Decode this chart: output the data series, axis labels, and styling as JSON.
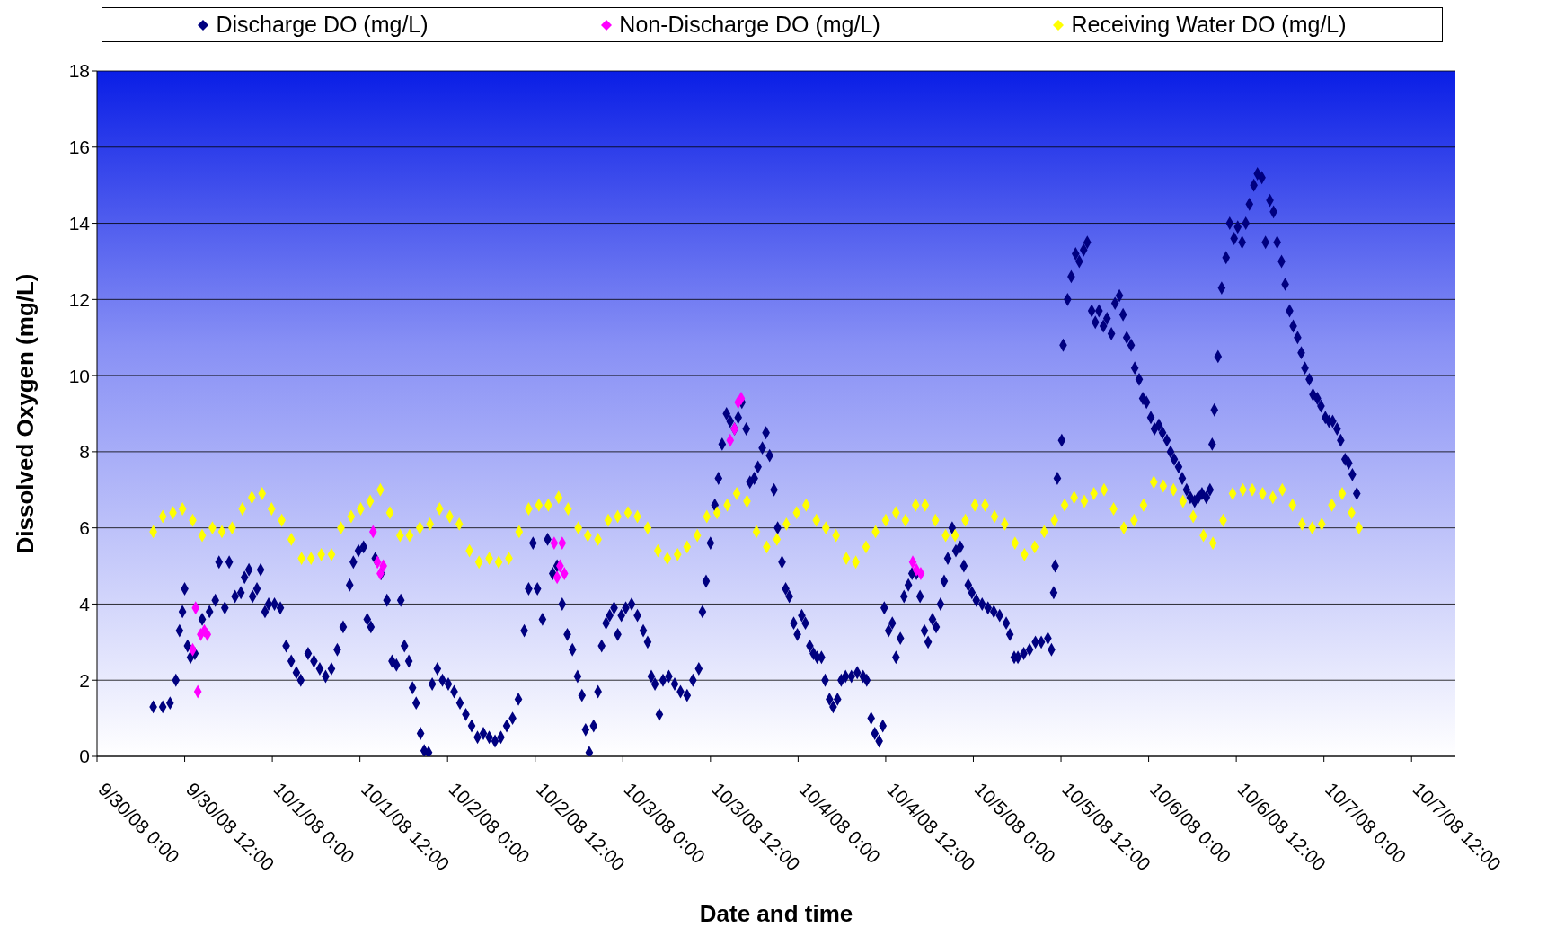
{
  "chart_data": {
    "type": "scatter",
    "xlabel": "Date and time",
    "ylabel": "Dissolved Oxygen (mg/L)",
    "legend": "top",
    "grid": "y",
    "marker": "diamond",
    "xlim": [
      "--09-30T00:00",
      "--10-07T18:00"
    ],
    "ylim": [
      0,
      18
    ],
    "yticks": [
      0,
      2,
      4,
      6,
      8,
      10,
      12,
      14,
      16,
      18
    ],
    "xticks": [
      {
        "value": "--09-30T00:00",
        "label": "9/30/08 0:00"
      },
      {
        "value": "--09-30T12:00",
        "label": "9/30/08 12:00"
      },
      {
        "value": "--10-01T00:00",
        "label": "10/1/08 0:00"
      },
      {
        "value": "--10-01T12:00",
        "label": "10/1/08 12:00"
      },
      {
        "value": "--10-02T00:00",
        "label": "10/2/08 0:00"
      },
      {
        "value": "--10-02T12:00",
        "label": "10/2/08 12:00"
      },
      {
        "value": "--10-03T00:00",
        "label": "10/3/08 0:00"
      },
      {
        "value": "--10-03T12:00",
        "label": "10/3/08 12:00"
      },
      {
        "value": "--10-04T00:00",
        "label": "10/4/08 0:00"
      },
      {
        "value": "--10-04T12:00",
        "label": "10/4/08 12:00"
      },
      {
        "value": "--10-05T00:00",
        "label": "10/5/08 0:00"
      },
      {
        "value": "--10-05T12:00",
        "label": "10/5/08 12:00"
      },
      {
        "value": "--10-06T00:00",
        "label": "10/6/08 0:00"
      },
      {
        "value": "--10-06T12:00",
        "label": "10/6/08 12:00"
      },
      {
        "value": "--10-07T00:00",
        "label": "10/7/08 0:00"
      },
      {
        "value": "--10-07T12:00",
        "label": "10/7/08 12:00"
      }
    ],
    "series": [
      {
        "name": "Discharge DO (mg/L)",
        "color": "#000080",
        "x": [
          "--09-30T07:42",
          "--09-30T09:00",
          "--09-30T10:00",
          "--09-30T10:48",
          "--09-30T11:18",
          "--09-30T11:42",
          "--09-30T12:00",
          "--09-30T12:24",
          "--09-30T12:48",
          "--09-30T13:24",
          "--09-30T14:24",
          "--09-30T15:24",
          "--09-30T16:12",
          "--09-30T16:42",
          "--09-30T17:30",
          "--09-30T18:06",
          "--09-30T18:54",
          "--09-30T19:42",
          "--09-30T20:12",
          "--09-30T20:48",
          "--09-30T21:18",
          "--09-30T21:54",
          "--09-30T22:24",
          "--09-30T23:00",
          "--09-30T23:30",
          "--10-01T00:18",
          "--10-01T01:06",
          "--10-01T01:54",
          "--10-01T02:36",
          "--10-01T03:18",
          "--10-01T03:54",
          "--10-01T04:54",
          "--10-01T05:42",
          "--10-01T06:30",
          "--10-01T07:18",
          "--10-01T08:06",
          "--10-01T08:54",
          "--10-01T09:42",
          "--10-01T10:36",
          "--10-01T11:06",
          "--10-01T11:48",
          "--10-01T12:30",
          "--10-01T13:00",
          "--10-01T13:30",
          "--10-01T14:06",
          "--10-01T14:54",
          "--10-01T15:42",
          "--10-01T16:24",
          "--10-01T17:00",
          "--10-01T17:36",
          "--10-01T18:06",
          "--10-01T18:42",
          "--10-01T19:12",
          "--10-01T19:42",
          "--10-01T20:18",
          "--10-01T20:48",
          "--10-01T21:24",
          "--10-01T21:54",
          "--10-01T22:36",
          "--10-01T23:18",
          "--10-02T00:06",
          "--10-02T00:54",
          "--10-02T01:42",
          "--10-02T02:30",
          "--10-02T03:18",
          "--10-02T04:06",
          "--10-02T04:54",
          "--10-02T05:42",
          "--10-02T06:30",
          "--10-02T07:18",
          "--10-02T08:06",
          "--10-02T08:54",
          "--10-02T09:42",
          "--10-02T10:30",
          "--10-02T11:06",
          "--10-02T11:42",
          "--10-02T12:18",
          "--10-02T13:00",
          "--10-02T13:42",
          "--10-02T14:24",
          "--10-02T15:00",
          "--10-02T15:42",
          "--10-02T16:24",
          "--10-02T17:06",
          "--10-02T17:48",
          "--10-02T18:24",
          "--10-02T18:54",
          "--10-02T19:24",
          "--10-02T20:00",
          "--10-02T20:36",
          "--10-02T21:06",
          "--10-02T21:42",
          "--10-02T22:12",
          "--10-02T22:48",
          "--10-02T23:18",
          "--10-02T23:48",
          "--10-03T00:24",
          "--10-03T01:12",
          "--10-03T02:00",
          "--10-03T02:48",
          "--10-03T03:24",
          "--10-03T03:54",
          "--10-03T04:24",
          "--10-03T05:00",
          "--10-03T05:30",
          "--10-03T06:18",
          "--10-03T07:06",
          "--10-03T07:54",
          "--10-03T08:48",
          "--10-03T09:36",
          "--10-03T10:24",
          "--10-03T10:54",
          "--10-03T11:24",
          "--10-03T12:00",
          "--10-03T12:36",
          "--10-03T13:06",
          "--10-03T13:36",
          "--10-03T14:12",
          "--10-03T14:42",
          "--10-03T15:18",
          "--10-03T15:48",
          "--10-03T16:18",
          "--10-03T16:54",
          "--10-03T17:24",
          "--10-03T18:00",
          "--10-03T18:30",
          "--10-03T19:06",
          "--10-03T19:36",
          "--10-03T20:06",
          "--10-03T20:42",
          "--10-03T21:12",
          "--10-03T21:48",
          "--10-03T22:18",
          "--10-03T22:48",
          "--10-03T23:24",
          "--10-03T23:54",
          "--10-04T00:30",
          "--10-04T01:00",
          "--10-04T01:36",
          "--10-04T02:06",
          "--10-04T02:36",
          "--10-04T03:12",
          "--10-04T03:42",
          "--10-04T04:18",
          "--10-04T04:48",
          "--10-04T05:24",
          "--10-04T05:54",
          "--10-04T06:30",
          "--10-04T07:18",
          "--10-04T08:06",
          "--10-04T08:54",
          "--10-04T09:24",
          "--10-04T10:00",
          "--10-04T10:30",
          "--10-04T11:06",
          "--10-04T11:36",
          "--10-04T11:48",
          "--10-04T12:24",
          "--10-04T12:54",
          "--10-04T13:24",
          "--10-04T14:00",
          "--10-04T14:30",
          "--10-04T15:06",
          "--10-04T15:36",
          "--10-04T16:12",
          "--10-04T16:42",
          "--10-04T17:18",
          "--10-04T17:48",
          "--10-04T18:24",
          "--10-04T18:54",
          "--10-04T19:30",
          "--10-04T20:00",
          "--10-04T20:30",
          "--10-04T21:06",
          "--10-04T21:36",
          "--10-04T22:12",
          "--10-04T22:42",
          "--10-04T23:18",
          "--10-04T23:48",
          "--10-05T00:24",
          "--10-05T01:12",
          "--10-05T02:00",
          "--10-05T02:48",
          "--10-05T03:36",
          "--10-05T04:30",
          "--10-05T05:00",
          "--10-05T05:36",
          "--10-05T06:06",
          "--10-05T06:54",
          "--10-05T07:42",
          "--10-05T08:30",
          "--10-05T09:18",
          "--10-05T10:12",
          "--10-05T10:42",
          "--10-05T11:00",
          "--10-05T11:12",
          "--10-05T11:30",
          "--10-05T12:06",
          "--10-05T12:18",
          "--10-05T12:54",
          "--10-05T13:24",
          "--10-05T14:00",
          "--10-05T14:30",
          "--10-05T15:06",
          "--10-05T15:36",
          "--10-05T16:12",
          "--10-05T16:42",
          "--10-05T17:12",
          "--10-05T17:48",
          "--10-05T18:18",
          "--10-05T18:54",
          "--10-05T19:24",
          "--10-05T20:00",
          "--10-05T20:30",
          "--10-05T21:00",
          "--10-05T21:36",
          "--10-05T22:06",
          "--10-05T22:42",
          "--10-05T23:12",
          "--10-05T23:42",
          "--10-06T00:18",
          "--10-06T00:48",
          "--10-06T01:24",
          "--10-06T01:54",
          "--10-06T02:30",
          "--10-06T03:00",
          "--10-06T03:30",
          "--10-06T04:06",
          "--10-06T04:36",
          "--10-06T05:12",
          "--10-06T05:42",
          "--10-06T06:18",
          "--10-06T06:48",
          "--10-06T07:18",
          "--10-06T07:54",
          "--10-06T08:24",
          "--10-06T08:42",
          "--10-06T09:00",
          "--10-06T09:30",
          "--10-06T10:00",
          "--10-06T10:36",
          "--10-06T11:06",
          "--10-06T11:42",
          "--10-06T12:12",
          "--10-06T12:48",
          "--10-06T13:18",
          "--10-06T13:48",
          "--10-06T14:24",
          "--10-06T14:54",
          "--10-06T15:30",
          "--10-06T16:00",
          "--10-06T16:36",
          "--10-06T17:06",
          "--10-06T17:36",
          "--10-06T18:12",
          "--10-06T18:42",
          "--10-06T19:18",
          "--10-06T19:48",
          "--10-06T20:24",
          "--10-06T20:54",
          "--10-06T21:24",
          "--10-06T22:00",
          "--10-06T22:30",
          "--10-06T23:06",
          "--10-06T23:36",
          "--10-07T00:12",
          "--10-07T00:42",
          "--10-07T01:12",
          "--10-07T01:48",
          "--10-07T02:18",
          "--10-07T02:54",
          "--10-07T03:24",
          "--10-07T03:54",
          "--10-07T04:30"
        ],
        "values": [
          1.3,
          1.3,
          1.4,
          2,
          3.3,
          3.8,
          4.4,
          2.9,
          2.6,
          2.7,
          3.6,
          3.8,
          4.1,
          5.1,
          3.9,
          5.1,
          4.2,
          4.3,
          4.7,
          4.9,
          4.2,
          4.4,
          4.9,
          3.8,
          4,
          4,
          3.9,
          2.9,
          2.5,
          2.2,
          2,
          2.7,
          2.5,
          2.3,
          2.1,
          2.3,
          2.8,
          3.4,
          4.5,
          5.1,
          5.4,
          5.5,
          3.6,
          3.4,
          5.2,
          4.8,
          4.1,
          2.5,
          2.4,
          4.1,
          2.9,
          2.5,
          1.8,
          1.4,
          0.6,
          0.15,
          0.1,
          1.9,
          2.3,
          2,
          1.9,
          1.7,
          1.4,
          1.1,
          0.8,
          0.5,
          0.6,
          0.5,
          0.4,
          0.5,
          0.8,
          1,
          1.5,
          3.3,
          4.4,
          5.6,
          4.4,
          3.6,
          5.7,
          4.8,
          5,
          4,
          3.2,
          2.8,
          2.1,
          1.6,
          0.7,
          0.1,
          0.8,
          1.7,
          2.9,
          3.5,
          3.7,
          3.9,
          3.2,
          3.7,
          3.9,
          4,
          3.7,
          3.3,
          3,
          2.1,
          1.9,
          1.1,
          2,
          2.1,
          1.9,
          1.7,
          1.6,
          2,
          2.3,
          3.8,
          4.6,
          5.6,
          6.6,
          7.3,
          8.2,
          9,
          8.8,
          8.6,
          8.9,
          9.3,
          8.6,
          7.2,
          7.3,
          7.6,
          8.1,
          8.5,
          7.9,
          7,
          6,
          5.1,
          4.4,
          4.2,
          3.5,
          3.2,
          3.7,
          3.5,
          2.9,
          2.7,
          2.6,
          2.6,
          2,
          1.5,
          1.3,
          1.5,
          2,
          2.1,
          2.1,
          2.2,
          2.1,
          2,
          1,
          0.6,
          0.4,
          0.8,
          3.9,
          3.3,
          3.5,
          2.6,
          3.1,
          4.2,
          4.5,
          4.8,
          4.8,
          4.2,
          3.3,
          3,
          3.6,
          3.4,
          4,
          4.6,
          5.2,
          6,
          5.4,
          5.5,
          5,
          4.5,
          4.3,
          4.1,
          4,
          3.9,
          3.8,
          3.7,
          3.5,
          3.2,
          2.6,
          2.6,
          2.7,
          2.8,
          3,
          3,
          3.1,
          2.8,
          4.3,
          5,
          7.3,
          8.3,
          10.8,
          12,
          12.6,
          13.2,
          13,
          13.3,
          13.5,
          11.7,
          11.4,
          11.7,
          11.3,
          11.5,
          11.1,
          11.9,
          12.1,
          11.6,
          11,
          10.8,
          10.2,
          9.9,
          9.4,
          9.3,
          8.9,
          8.6,
          8.7,
          8.5,
          8.3,
          8,
          7.8,
          7.6,
          7.3,
          7,
          6.8,
          6.7,
          6.8,
          6.9,
          6.8,
          7,
          8.2,
          9.1,
          10.5,
          12.3,
          13.1,
          14,
          13.6,
          13.9,
          13.5,
          14,
          14.5,
          15,
          15.3,
          15.2,
          13.5,
          14.6,
          14.3,
          13.5,
          13,
          12.4,
          11.7,
          11.3,
          11,
          10.6,
          10.2,
          9.9,
          9.5,
          9.4,
          9.2,
          8.9,
          8.8,
          8.8,
          8.6,
          8.3,
          7.8,
          7.7,
          7.4,
          6.9
        ]
      },
      {
        "name": "Non-Discharge DO (mg/L)",
        "color": "#ff00ff",
        "x": [
          "--09-30T13:06",
          "--09-30T13:30",
          "--09-30T13:48",
          "--09-30T14:12",
          "--09-30T14:42",
          "--09-30T15:06",
          "--10-01T13:48",
          "--10-01T14:24",
          "--10-01T14:48",
          "--10-01T15:12",
          "--10-02T14:36",
          "--10-02T15:00",
          "--10-02T15:24",
          "--10-02T15:42",
          "--10-02T16:00",
          "--10-03T14:42",
          "--10-03T15:18",
          "--10-03T15:48",
          "--10-03T16:12",
          "--10-04T15:42",
          "--10-04T16:12",
          "--10-04T16:48"
        ],
        "values": [
          2.8,
          3.9,
          1.7,
          3.2,
          3.3,
          3.2,
          5.9,
          5.1,
          4.8,
          5,
          5.6,
          4.7,
          5,
          5.6,
          4.8,
          8.3,
          8.6,
          9.3,
          9.4,
          5.1,
          4.9,
          4.8
        ]
      },
      {
        "name": "Receiving Water DO (mg/L)",
        "color": "#ffff00",
        "x": [
          "--09-30T07:42",
          "--09-30T09:00",
          "--09-30T10:24",
          "--09-30T11:42",
          "--09-30T13:06",
          "--09-30T14:24",
          "--09-30T15:48",
          "--09-30T17:06",
          "--09-30T18:30",
          "--09-30T19:54",
          "--09-30T21:12",
          "--09-30T22:36",
          "--09-30T23:54",
          "--10-01T01:18",
          "--10-01T02:36",
          "--10-01T04:00",
          "--10-01T05:18",
          "--10-01T06:42",
          "--10-01T08:06",
          "--10-01T09:24",
          "--10-01T10:48",
          "--10-01T12:06",
          "--10-01T13:24",
          "--10-01T14:48",
          "--10-01T16:06",
          "--10-01T17:30",
          "--10-01T18:48",
          "--10-01T20:12",
          "--10-01T21:36",
          "--10-01T22:54",
          "--10-02T00:18",
          "--10-02T01:36",
          "--10-02T03:00",
          "--10-02T04:18",
          "--10-02T05:42",
          "--10-02T07:00",
          "--10-02T08:24",
          "--10-02T09:48",
          "--10-02T11:06",
          "--10-02T12:30",
          "--10-02T13:48",
          "--10-02T15:12",
          "--10-02T16:30",
          "--10-02T17:54",
          "--10-02T19:12",
          "--10-02T20:36",
          "--10-02T22:00",
          "--10-02T23:18",
          "--10-03T00:42",
          "--10-03T02:00",
          "--10-03T03:24",
          "--10-03T04:48",
          "--10-03T06:06",
          "--10-03T07:30",
          "--10-03T08:48",
          "--10-03T10:12",
          "--10-03T11:30",
          "--10-03T12:54",
          "--10-03T14:18",
          "--10-03T15:36",
          "--10-03T17:00",
          "--10-03T18:18",
          "--10-03T19:42",
          "--10-03T21:06",
          "--10-03T22:24",
          "--10-03T23:48",
          "--10-04T01:06",
          "--10-04T02:30",
          "--10-04T03:48",
          "--10-04T05:12",
          "--10-04T06:36",
          "--10-04T07:54",
          "--10-04T09:18",
          "--10-04T10:36",
          "--10-04T12:00",
          "--10-04T13:24",
          "--10-04T14:42",
          "--10-04T16:06",
          "--10-04T17:24",
          "--10-04T18:48",
          "--10-04T20:12",
          "--10-04T21:30",
          "--10-04T22:54",
          "--10-05T00:12",
          "--10-05T01:36",
          "--10-05T02:54",
          "--10-05T04:18",
          "--10-05T05:42",
          "--10-05T07:00",
          "--10-05T08:24",
          "--10-05T09:42",
          "--10-05T11:06",
          "--10-05T12:30",
          "--10-05T13:48",
          "--10-05T15:12",
          "--10-05T16:30",
          "--10-05T17:54",
          "--10-05T19:12",
          "--10-05T20:36",
          "--10-05T22:00",
          "--10-05T23:18",
          "--10-06T00:42",
          "--10-06T02:00",
          "--10-06T03:24",
          "--10-06T04:42",
          "--10-06T06:06",
          "--10-06T07:30",
          "--10-06T08:48",
          "--10-06T10:12",
          "--10-06T11:30",
          "--10-06T12:54",
          "--10-06T14:12",
          "--10-06T15:36",
          "--10-06T17:00",
          "--10-06T18:18",
          "--10-06T19:42",
          "--10-06T21:00",
          "--10-06T22:24",
          "--10-06T23:42",
          "--10-07T01:06",
          "--10-07T02:30",
          "--10-07T03:48",
          "--10-07T04:48"
        ],
        "values": [
          5.9,
          6.3,
          6.4,
          6.5,
          6.2,
          5.8,
          6,
          5.9,
          6,
          6.5,
          6.8,
          6.9,
          6.5,
          6.2,
          5.7,
          5.2,
          5.2,
          5.3,
          5.3,
          6,
          6.3,
          6.5,
          6.7,
          7,
          6.4,
          5.8,
          5.8,
          6,
          6.1,
          6.5,
          6.3,
          6.1,
          5.4,
          5.1,
          5.2,
          5.1,
          5.2,
          5.9,
          6.5,
          6.6,
          6.6,
          6.8,
          6.5,
          6,
          5.8,
          5.7,
          6.2,
          6.3,
          6.4,
          6.3,
          6,
          5.4,
          5.2,
          5.3,
          5.5,
          5.8,
          6.3,
          6.4,
          6.6,
          6.9,
          6.7,
          5.9,
          5.5,
          5.7,
          6.1,
          6.4,
          6.6,
          6.2,
          6,
          5.8,
          5.2,
          5.1,
          5.5,
          5.9,
          6.2,
          6.4,
          6.2,
          6.6,
          6.6,
          6.2,
          5.8,
          5.8,
          6.2,
          6.6,
          6.6,
          6.3,
          6.1,
          5.6,
          5.3,
          5.5,
          5.9,
          6.2,
          6.6,
          6.8,
          6.7,
          6.9,
          7,
          6.5,
          6,
          6.2,
          6.6,
          7.2,
          7.1,
          7,
          6.7,
          6.3,
          5.8,
          5.6,
          6.2,
          6.9,
          7,
          7,
          6.9,
          6.8,
          7,
          6.6,
          6.1,
          6,
          6.1,
          6.6,
          6.9,
          6.4,
          6
        ]
      }
    ]
  }
}
